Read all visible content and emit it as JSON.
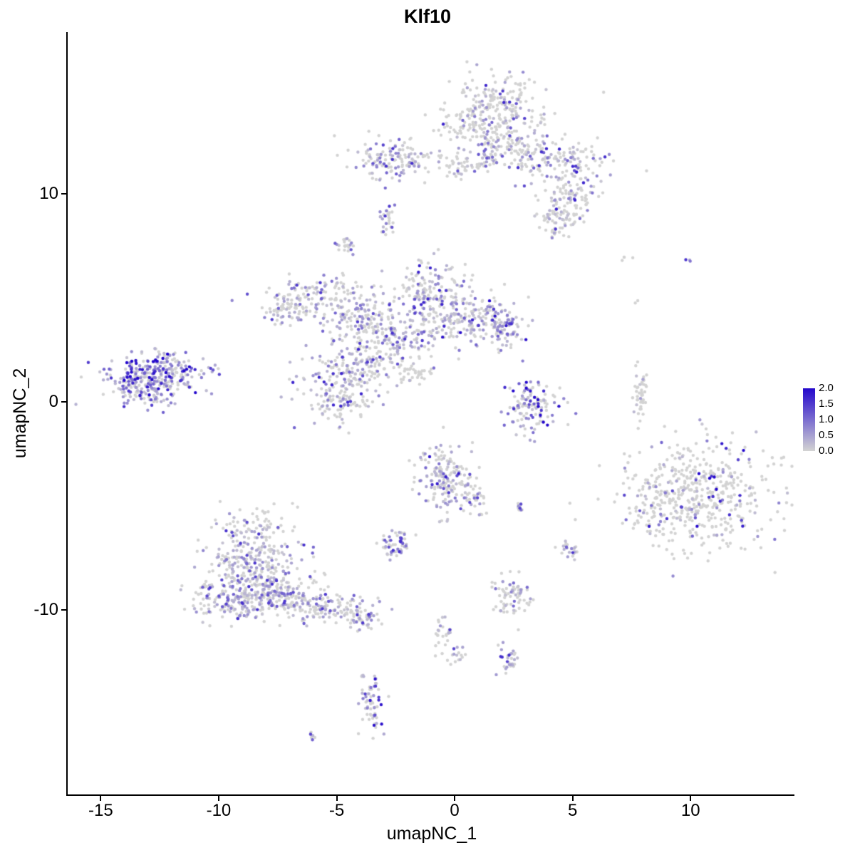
{
  "chart_data": {
    "type": "scatter",
    "title": "Klf10",
    "xlabel": "umapNC_1",
    "ylabel": "umapNC_2",
    "x_domain": [
      -16.4,
      14.4
    ],
    "y_domain": [
      -18.9,
      17.8
    ],
    "x_ticks": [
      -15,
      -10,
      -5,
      0,
      5,
      10
    ],
    "y_ticks": [
      -10,
      0,
      10
    ],
    "grid": false,
    "background": "#ffffff",
    "axis_color": "#000000",
    "point_color_low": "#d3d3d3",
    "point_color_high": "#2408cc",
    "legend": {
      "position": "right",
      "vmin": 0.0,
      "vmax": 2.0,
      "ticks": [
        2.0,
        1.5,
        1.0,
        0.5,
        0.0
      ]
    },
    "clusters": [
      {
        "name": "top-main",
        "cx": 1.6,
        "cy": 14.0,
        "sx": 1.1,
        "sy": 0.85,
        "n": 260,
        "frac": 0.3,
        "mean": 0.45,
        "max": 1.7
      },
      {
        "name": "top-neck",
        "cx": 1.9,
        "cy": 12.3,
        "sx": 0.9,
        "sy": 0.55,
        "n": 140,
        "frac": 0.3,
        "mean": 0.45,
        "max": 1.6
      },
      {
        "name": "top-arm-right",
        "cx": 4.4,
        "cy": 11.6,
        "sx": 1.1,
        "sy": 0.55,
        "n": 130,
        "frac": 0.35,
        "mean": 0.5,
        "max": 1.7
      },
      {
        "name": "top-right-lobe",
        "cx": 4.9,
        "cy": 9.9,
        "sx": 0.6,
        "sy": 0.6,
        "n": 100,
        "frac": 0.35,
        "mean": 0.5,
        "max": 1.8
      },
      {
        "name": "top-right-tip",
        "cx": 4.3,
        "cy": 8.7,
        "sx": 0.5,
        "sy": 0.4,
        "n": 55,
        "frac": 0.3,
        "mean": 0.45,
        "max": 1.5
      },
      {
        "name": "top-left-bit",
        "cx": 0.4,
        "cy": 11.4,
        "sx": 0.5,
        "sy": 0.3,
        "n": 35,
        "frac": 0.2,
        "mean": 0.4,
        "max": 1.2
      },
      {
        "name": "upper-mid",
        "cx": -2.5,
        "cy": 11.6,
        "sx": 1.0,
        "sy": 0.5,
        "n": 150,
        "frac": 0.4,
        "mean": 0.5,
        "max": 1.6
      },
      {
        "name": "sat-1",
        "cx": -2.85,
        "cy": 8.6,
        "sx": 0.18,
        "sy": 0.35,
        "n": 28,
        "frac": 0.55,
        "mean": 0.5,
        "max": 1.5
      },
      {
        "name": "sat-2",
        "cx": -4.6,
        "cy": 7.5,
        "sx": 0.2,
        "sy": 0.25,
        "n": 22,
        "frac": 0.5,
        "mean": 0.5,
        "max": 1.4
      },
      {
        "name": "central-n",
        "cx": -1.1,
        "cy": 5.2,
        "sx": 0.85,
        "sy": 0.75,
        "n": 190,
        "frac": 0.45,
        "mean": 0.5,
        "max": 1.7
      },
      {
        "name": "central-ne",
        "cx": 0.8,
        "cy": 4.0,
        "sx": 0.9,
        "sy": 0.65,
        "n": 170,
        "frac": 0.5,
        "mean": 0.55,
        "max": 1.9
      },
      {
        "name": "central-e-dark",
        "cx": 2.0,
        "cy": 3.7,
        "sx": 0.45,
        "sy": 0.5,
        "n": 70,
        "frac": 0.6,
        "mean": 0.7,
        "max": 2.0
      },
      {
        "name": "central-mid",
        "cx": -2.7,
        "cy": 3.1,
        "sx": 0.95,
        "sy": 0.6,
        "n": 170,
        "frac": 0.45,
        "mean": 0.5,
        "max": 1.6
      },
      {
        "name": "central-arm-w",
        "cx": -5.7,
        "cy": 5.1,
        "sx": 1.2,
        "sy": 0.45,
        "n": 110,
        "frac": 0.4,
        "mean": 0.5,
        "max": 1.5
      },
      {
        "name": "central-w",
        "cx": -7.0,
        "cy": 4.4,
        "sx": 0.55,
        "sy": 0.4,
        "n": 70,
        "frac": 0.4,
        "mean": 0.5,
        "max": 1.5
      },
      {
        "name": "central-diag",
        "cx": -4.2,
        "cy": 4.2,
        "sx": 0.8,
        "sy": 0.5,
        "n": 100,
        "frac": 0.4,
        "mean": 0.5,
        "max": 1.5
      },
      {
        "name": "central-s",
        "cx": -5.0,
        "cy": 0.6,
        "sx": 0.75,
        "sy": 0.9,
        "n": 180,
        "frac": 0.45,
        "mean": 0.5,
        "max": 1.7
      },
      {
        "name": "central-sm",
        "cx": -3.9,
        "cy": 1.8,
        "sx": 0.5,
        "sy": 0.5,
        "n": 90,
        "frac": 0.45,
        "mean": 0.5,
        "max": 1.5
      },
      {
        "name": "central-trail",
        "cx": -1.8,
        "cy": 1.4,
        "sx": 0.55,
        "sy": 0.35,
        "n": 45,
        "frac": 0.15,
        "mean": 0.4,
        "max": 1.0
      },
      {
        "name": "left-main",
        "cx": -12.6,
        "cy": 1.3,
        "sx": 1.0,
        "sy": 0.55,
        "n": 300,
        "frac": 0.75,
        "mean": 0.85,
        "max": 2.0
      },
      {
        "name": "left-fringe",
        "cx": -13.4,
        "cy": 0.4,
        "sx": 0.8,
        "sy": 0.35,
        "n": 60,
        "frac": 0.6,
        "mean": 0.7,
        "max": 1.8
      },
      {
        "name": "mid-right",
        "cx": 3.3,
        "cy": -0.2,
        "sx": 0.55,
        "sy": 0.75,
        "n": 130,
        "frac": 0.5,
        "mean": 0.7,
        "max": 2.0
      },
      {
        "name": "sliver",
        "cx": 7.9,
        "cy": 0.3,
        "sx": 0.15,
        "sy": 0.75,
        "n": 45,
        "frac": 0.12,
        "mean": 0.4,
        "max": 1.0
      },
      {
        "name": "iso-1",
        "cx": 7.2,
        "cy": 7.0,
        "sx": 0.15,
        "sy": 0.12,
        "n": 4,
        "frac": 0.2,
        "mean": 0.4,
        "max": 1.0
      },
      {
        "name": "iso-2",
        "cx": 9.9,
        "cy": 6.8,
        "sx": 0.1,
        "sy": 0.1,
        "n": 3,
        "frac": 0.7,
        "mean": 0.8,
        "max": 1.6
      },
      {
        "name": "iso-3",
        "cx": 7.7,
        "cy": 4.8,
        "sx": 0.1,
        "sy": 0.1,
        "n": 2,
        "frac": 0.0,
        "mean": 0.4,
        "max": 1.0
      },
      {
        "name": "right-main",
        "cx": 10.6,
        "cy": -4.5,
        "sx": 1.55,
        "sy": 1.25,
        "n": 480,
        "frac": 0.18,
        "mean": 0.85,
        "max": 2.0
      },
      {
        "name": "right-edge",
        "cx": 8.3,
        "cy": -5.3,
        "sx": 0.5,
        "sy": 0.8,
        "n": 60,
        "frac": 0.22,
        "mean": 0.7,
        "max": 1.8
      },
      {
        "name": "bottom-mid",
        "cx": -0.4,
        "cy": -3.6,
        "sx": 0.6,
        "sy": 0.85,
        "n": 170,
        "frac": 0.5,
        "mean": 0.55,
        "max": 1.8
      },
      {
        "name": "bottom-mid-e",
        "cx": 0.8,
        "cy": -4.5,
        "sx": 0.3,
        "sy": 0.4,
        "n": 40,
        "frac": 0.4,
        "mean": 0.5,
        "max": 1.4
      },
      {
        "name": "tiny-pair",
        "cx": 2.8,
        "cy": -5.0,
        "sx": 0.15,
        "sy": 0.12,
        "n": 12,
        "frac": 0.5,
        "mean": 0.6,
        "max": 1.4
      },
      {
        "name": "small-mid",
        "cx": -2.4,
        "cy": -6.9,
        "sx": 0.35,
        "sy": 0.3,
        "n": 55,
        "frac": 0.55,
        "mean": 0.6,
        "max": 1.6
      },
      {
        "name": "bl-main",
        "cx": -8.6,
        "cy": -7.6,
        "sx": 1.05,
        "sy": 0.85,
        "n": 260,
        "frac": 0.5,
        "mean": 0.5,
        "max": 1.6
      },
      {
        "name": "bl-low",
        "cx": -9.2,
        "cy": -9.5,
        "sx": 0.95,
        "sy": 0.55,
        "n": 190,
        "frac": 0.5,
        "mean": 0.5,
        "max": 1.6
      },
      {
        "name": "bl-low2",
        "cx": -7.2,
        "cy": -9.3,
        "sx": 0.8,
        "sy": 0.5,
        "n": 150,
        "frac": 0.45,
        "mean": 0.5,
        "max": 1.5
      },
      {
        "name": "bl-arm",
        "cx": -5.2,
        "cy": -10.0,
        "sx": 0.95,
        "sy": 0.35,
        "n": 120,
        "frac": 0.45,
        "mean": 0.5,
        "max": 1.5
      },
      {
        "name": "bl-tip",
        "cx": -3.9,
        "cy": -10.5,
        "sx": 0.3,
        "sy": 0.25,
        "n": 40,
        "frac": 0.5,
        "mean": 0.55,
        "max": 1.5
      },
      {
        "name": "bl-top",
        "cx": -8.5,
        "cy": -5.9,
        "sx": 0.8,
        "sy": 0.45,
        "n": 55,
        "frac": 0.4,
        "mean": 0.45,
        "max": 1.3
      },
      {
        "name": "br-small",
        "cx": 2.4,
        "cy": -9.3,
        "sx": 0.4,
        "sy": 0.5,
        "n": 75,
        "frac": 0.35,
        "mean": 0.5,
        "max": 1.5
      },
      {
        "name": "r-small",
        "cx": 4.9,
        "cy": -7.1,
        "sx": 0.2,
        "sy": 0.25,
        "n": 22,
        "frac": 0.45,
        "mean": 0.55,
        "max": 1.5
      },
      {
        "name": "trail-1",
        "cx": -0.5,
        "cy": -11.3,
        "sx": 0.25,
        "sy": 0.45,
        "n": 30,
        "frac": 0.45,
        "mean": 0.5,
        "max": 1.4
      },
      {
        "name": "trail-2",
        "cx": 0.1,
        "cy": -12.2,
        "sx": 0.2,
        "sy": 0.2,
        "n": 12,
        "frac": 0.4,
        "mean": 0.5,
        "max": 1.2
      },
      {
        "name": "b-small",
        "cx": 2.3,
        "cy": -12.4,
        "sx": 0.25,
        "sy": 0.3,
        "n": 30,
        "frac": 0.55,
        "mean": 0.6,
        "max": 1.6
      },
      {
        "name": "b-vert",
        "cx": -3.5,
        "cy": -14.5,
        "sx": 0.22,
        "sy": 0.75,
        "n": 65,
        "frac": 0.6,
        "mean": 0.7,
        "max": 1.9
      },
      {
        "name": "b-tiny",
        "cx": -6.0,
        "cy": -16.1,
        "sx": 0.15,
        "sy": 0.1,
        "n": 8,
        "frac": 0.6,
        "mean": 0.6,
        "max": 1.4
      }
    ]
  }
}
